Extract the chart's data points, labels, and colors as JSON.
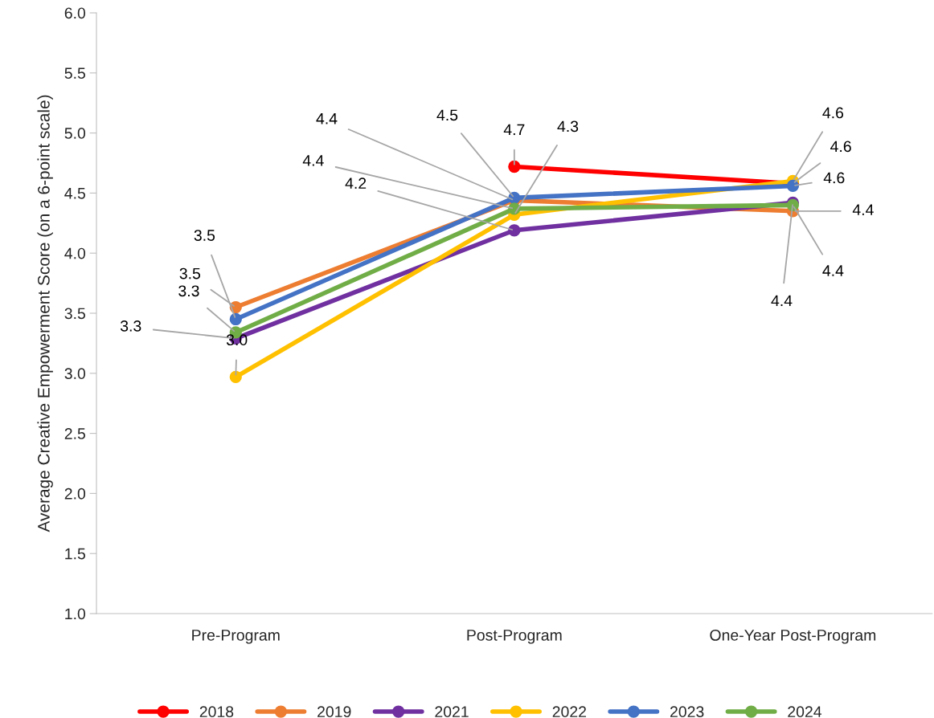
{
  "chart_data": {
    "type": "line",
    "ylabel": "Average Creative Empowerment Score (on a 6-point scale)",
    "categories": [
      "Pre-Program",
      "Post-Program",
      "One-Year Post-Program"
    ],
    "series": [
      {
        "name": "2018",
        "color": "#ff0000",
        "values": [
          null,
          4.72,
          4.58
        ],
        "value_labels": [
          null,
          "4.7",
          "4.6"
        ]
      },
      {
        "name": "2019",
        "color": "#ed7d31",
        "values": [
          3.55,
          4.44,
          4.35
        ],
        "value_labels": [
          "3.5",
          "4.4",
          "4.4"
        ]
      },
      {
        "name": "2021",
        "color": "#7030a0",
        "values": [
          3.29,
          4.19,
          4.42
        ],
        "value_labels": [
          "3.3",
          "4.2",
          "4.4"
        ]
      },
      {
        "name": "2022",
        "color": "#ffc000",
        "values": [
          2.97,
          4.32,
          4.6
        ],
        "value_labels": [
          "3.0",
          "4.3",
          "4.6"
        ]
      },
      {
        "name": "2023",
        "color": "#4472c4",
        "values": [
          3.45,
          4.46,
          4.56
        ],
        "value_labels": [
          "3.5",
          "4.5",
          "4.6"
        ]
      },
      {
        "name": "2024",
        "color": "#70ad47",
        "values": [
          3.34,
          4.37,
          4.4
        ],
        "value_labels": [
          "3.3",
          "4.4",
          "4.4"
        ]
      }
    ],
    "ylim": [
      1.0,
      6.0
    ],
    "yticks": [
      {
        "value": 1.0,
        "label": "1.0"
      },
      {
        "value": 1.5,
        "label": "1.5"
      },
      {
        "value": 2.0,
        "label": "2.0"
      },
      {
        "value": 2.5,
        "label": "2.5"
      },
      {
        "value": 3.0,
        "label": "3.0"
      },
      {
        "value": 3.5,
        "label": "3.5"
      },
      {
        "value": 4.0,
        "label": "4.0"
      },
      {
        "value": 4.5,
        "label": "4.5"
      },
      {
        "value": 5.0,
        "label": "5.0"
      },
      {
        "value": 5.5,
        "label": "5.5"
      },
      {
        "value": 6.0,
        "label": "6.0"
      }
    ],
    "grid": false,
    "legend": "bottom",
    "marker": "circle",
    "line_style": "solid"
  }
}
